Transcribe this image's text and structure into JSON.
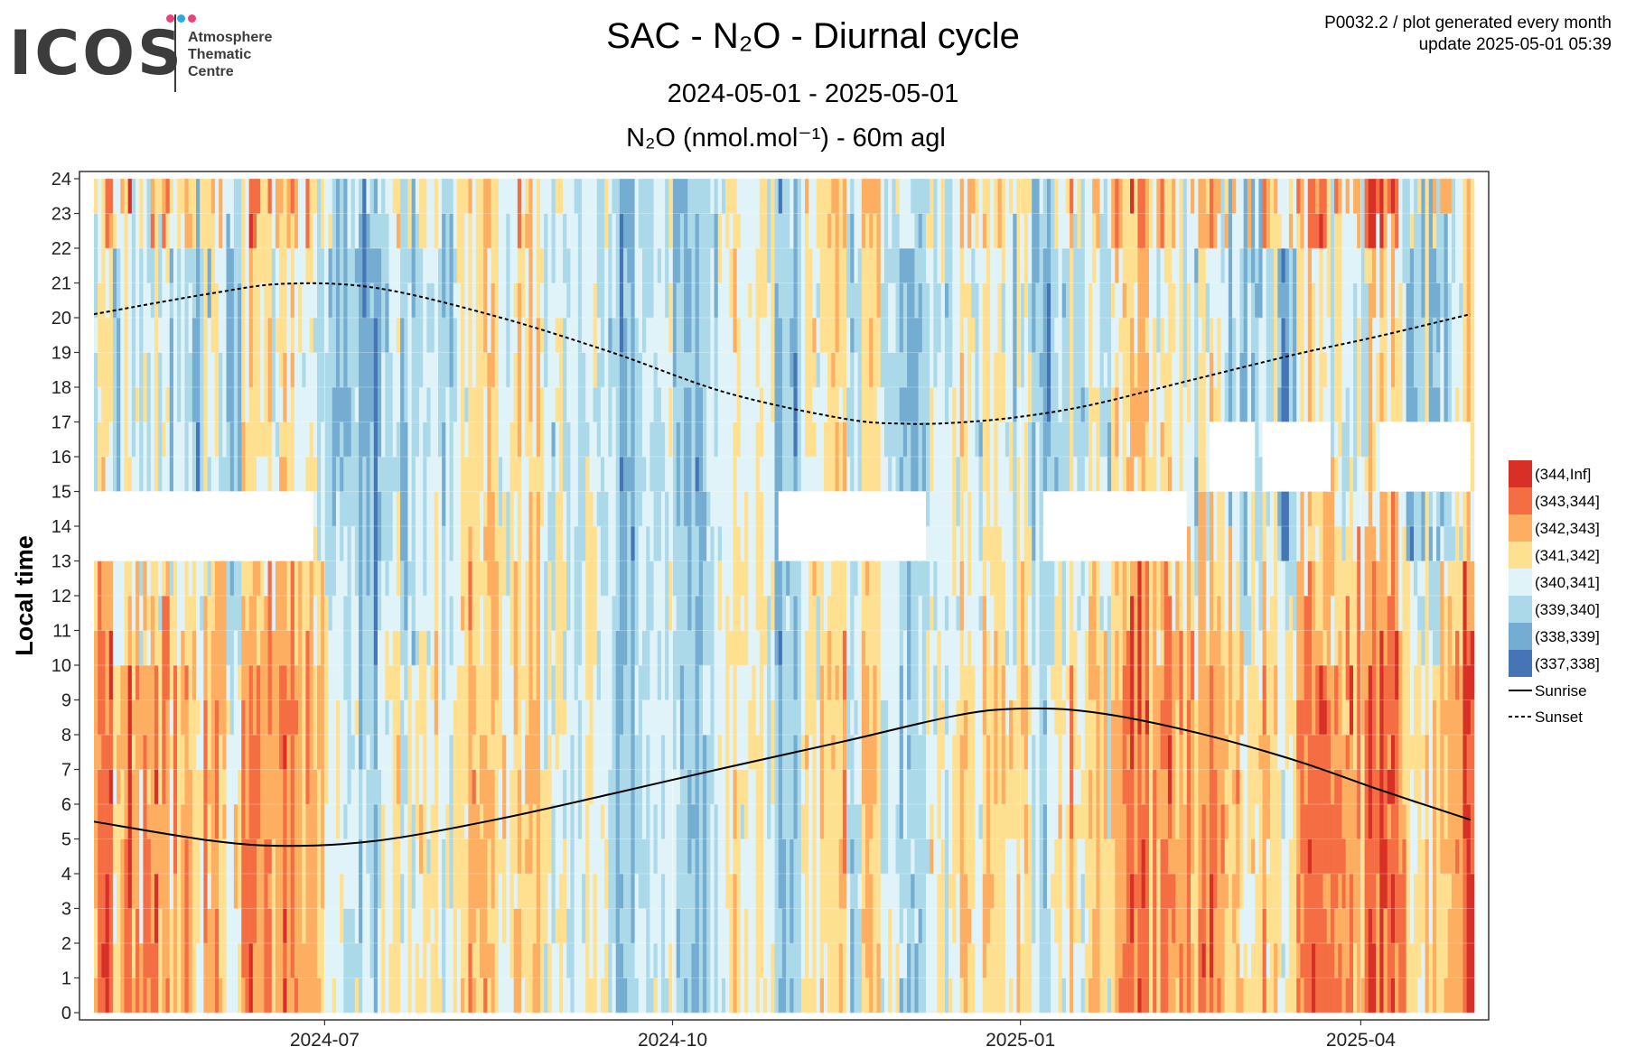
{
  "logo": {
    "word": "ICOS",
    "lines": [
      "Atmosphere",
      "Thematic",
      "Centre"
    ],
    "dot_colors": [
      "#e8417d",
      "#2fa8e0",
      "#e8417d"
    ]
  },
  "header": {
    "title": "SAC - N₂O - Diurnal cycle",
    "date_range": "2024-05-01 - 2025-05-01",
    "subtitle": "N₂O (nmol.mol⁻¹) - 60m agl",
    "note_line1": "P0032.2 / plot generated every month",
    "note_line2": "update  2025-05-01 05:39"
  },
  "chart_data": {
    "type": "heatmap",
    "title": "SAC - N₂O - Diurnal cycle",
    "subtitle": "N₂O (nmol.mol⁻¹) - 60m agl",
    "xlabel": "",
    "ylabel": "Local time",
    "xlim": [
      "2024-05-01",
      "2025-05-01"
    ],
    "ylim": [
      0,
      24
    ],
    "x_ticks": [
      {
        "date": "2024-07-01",
        "label": "2024-07"
      },
      {
        "date": "2024-10-01",
        "label": "2024-10"
      },
      {
        "date": "2025-01-01",
        "label": "2025-01"
      },
      {
        "date": "2025-04-01",
        "label": "2025-04"
      }
    ],
    "y_ticks": [
      0,
      1,
      2,
      3,
      4,
      5,
      6,
      7,
      8,
      9,
      10,
      11,
      12,
      13,
      14,
      15,
      16,
      17,
      18,
      19,
      20,
      21,
      22,
      23,
      24
    ],
    "grid": true,
    "legend_position": "right",
    "cell_resolution": "1 day x 1 hour",
    "color_bins": [
      {
        "label": "(344,Inf]",
        "color": "#d73027"
      },
      {
        "label": "(343,344]",
        "color": "#f46d43"
      },
      {
        "label": "(342,343]",
        "color": "#fdae61"
      },
      {
        "label": "(341,342]",
        "color": "#fee090"
      },
      {
        "label": "(340,341]",
        "color": "#e0f3f8"
      },
      {
        "label": "(339,340]",
        "color": "#abd9e9"
      },
      {
        "label": "(338,339]",
        "color": "#74add1"
      },
      {
        "label": "(337,338]",
        "color": "#4575b4"
      }
    ],
    "missing_data": [
      {
        "from": "2024-05-01",
        "to": "2024-06-28",
        "hours": [
          13,
          14
        ]
      },
      {
        "from": "2024-10-29",
        "to": "2024-12-07",
        "hours": [
          13,
          14
        ]
      },
      {
        "from": "2025-01-07",
        "to": "2025-02-14",
        "hours": [
          13,
          14
        ]
      },
      {
        "from": "2025-02-20",
        "to": "2025-03-04",
        "hours": [
          15,
          16
        ]
      },
      {
        "from": "2025-03-06",
        "to": "2025-03-24",
        "hours": [
          15,
          16
        ]
      },
      {
        "from": "2025-04-06",
        "to": "2025-04-30",
        "hours": [
          15,
          16
        ]
      }
    ],
    "daylight_lines": [
      {
        "name": "Sunrise",
        "style": "solid",
        "points": [
          [
            "2024-05-01",
            5.5
          ],
          [
            "2024-06-01",
            4.95
          ],
          [
            "2024-06-21",
            4.8
          ],
          [
            "2024-07-15",
            4.95
          ],
          [
            "2024-08-15",
            5.55
          ],
          [
            "2024-09-15",
            6.3
          ],
          [
            "2024-10-15",
            7.05
          ],
          [
            "2024-11-15",
            7.8
          ],
          [
            "2024-12-15",
            8.55
          ],
          [
            "2025-01-01",
            8.75
          ],
          [
            "2025-01-20",
            8.65
          ],
          [
            "2025-02-15",
            8.1
          ],
          [
            "2025-03-15",
            7.25
          ],
          [
            "2025-04-05",
            6.45
          ],
          [
            "2025-04-30",
            5.55
          ]
        ]
      },
      {
        "name": "Sunset",
        "style": "dashed",
        "points": [
          [
            "2024-05-01",
            20.1
          ],
          [
            "2024-06-01",
            20.7
          ],
          [
            "2024-06-21",
            20.98
          ],
          [
            "2024-07-15",
            20.85
          ],
          [
            "2024-08-15",
            20.05
          ],
          [
            "2024-09-15",
            19.0
          ],
          [
            "2024-10-15",
            17.85
          ],
          [
            "2024-11-15",
            17.1
          ],
          [
            "2024-12-01",
            16.95
          ],
          [
            "2024-12-15",
            16.98
          ],
          [
            "2025-01-01",
            17.15
          ],
          [
            "2025-01-20",
            17.5
          ],
          [
            "2025-02-15",
            18.2
          ],
          [
            "2025-03-15",
            18.95
          ],
          [
            "2025-04-05",
            19.45
          ],
          [
            "2025-04-30",
            20.1
          ]
        ]
      }
    ]
  }
}
